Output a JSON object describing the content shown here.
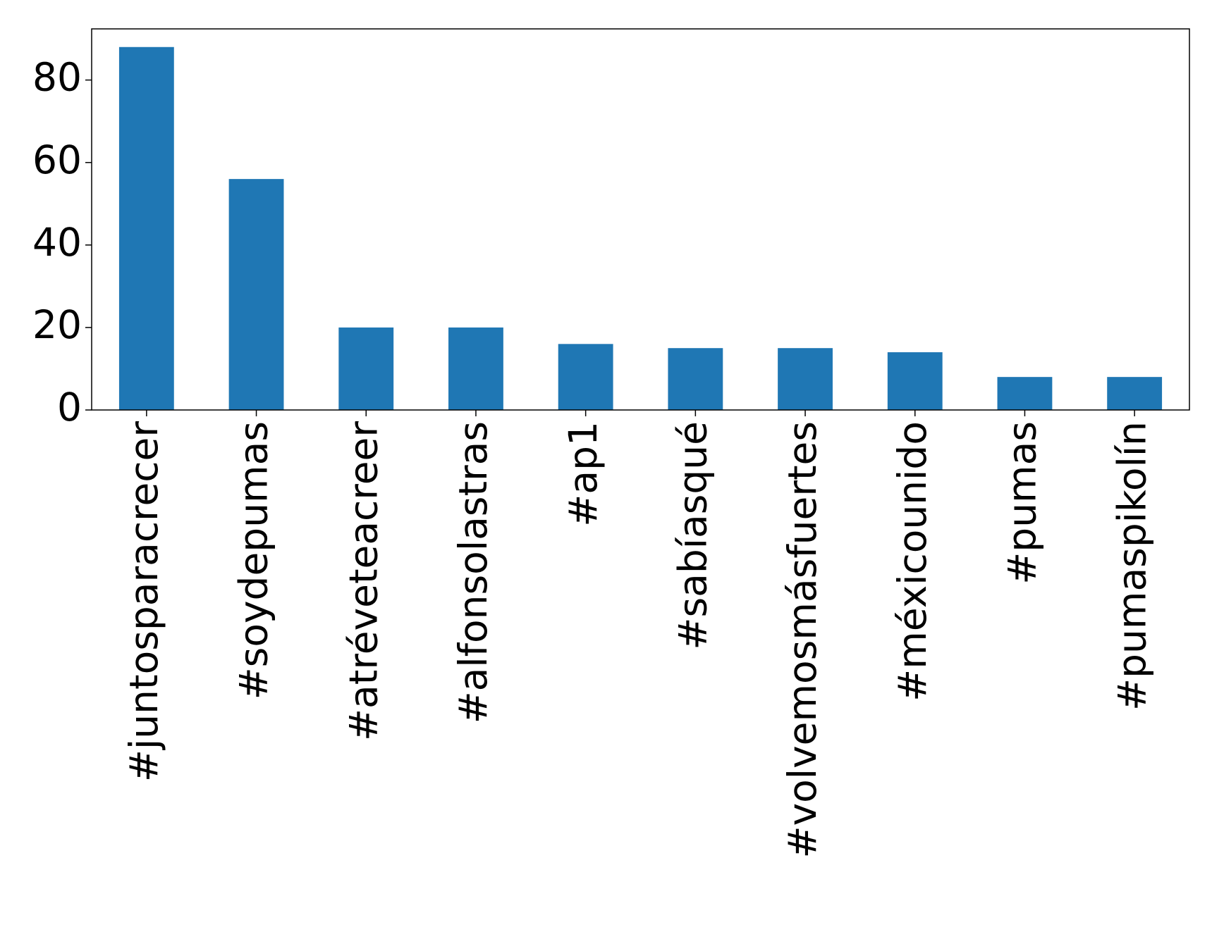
{
  "chart_data": {
    "type": "bar",
    "categories": [
      "#juntosparacrecer",
      "#soydepumas",
      "#atréveteacreer",
      "#alfonsolastras",
      "#ap1",
      "#sabíasqué",
      "#volvemosmásfuertes",
      "#méxicounido",
      "#pumas",
      "#pumaspikolín"
    ],
    "values": [
      88,
      56,
      20,
      20,
      16,
      15,
      15,
      14,
      8,
      8
    ],
    "color": "#1f77b4",
    "ylim": [
      0,
      92.4
    ],
    "yticks": [
      0,
      20,
      40,
      60,
      80
    ],
    "grid": false
  }
}
